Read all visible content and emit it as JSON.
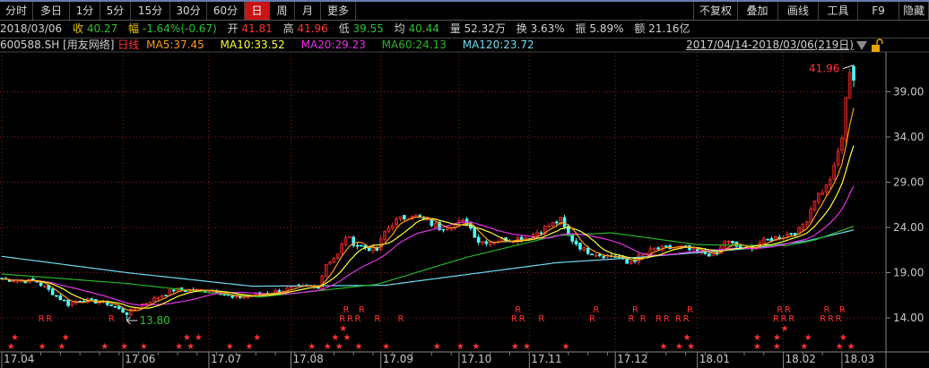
{
  "toolbar": {
    "left_tabs": [
      "分时",
      "多日",
      "1分",
      "5分",
      "15分",
      "30分",
      "60分",
      "日",
      "周",
      "月",
      "更多"
    ],
    "active_tab": "日",
    "right_tabs": [
      "不复权",
      "叠加",
      "画线",
      "工具",
      "F9",
      "隐藏"
    ]
  },
  "quote": {
    "date": "2018/03/06",
    "close_label": "收",
    "close": "40.27",
    "change_label": "幅",
    "change": "-1.64%(-0.67)",
    "open_label": "开",
    "open": "41.81",
    "high_label": "高",
    "high": "41.96",
    "low_label": "低",
    "low": "39.55",
    "avg_label": "均",
    "avg": "40.44",
    "volume_label": "量",
    "volume": "52.32万",
    "turnover_label": "换",
    "turnover": "3.63%",
    "amplitude_label": "振",
    "amplitude": "5.89%",
    "amount_label": "额",
    "amount": "21.16亿"
  },
  "indicator": {
    "symbol": "600588.SH [用友网络]",
    "period": "日线",
    "ma5": "MA5:37.45",
    "ma10": "MA10:33.52",
    "ma20": "MA20:29.23",
    "ma60": "MA60:24.13",
    "ma120": "MA120:23.72",
    "range": "2017/04/14-2018/03/06(219日)"
  },
  "colors": {
    "up": "#ff3232",
    "down": "#54fcfc",
    "ma5": "#ff9a1e",
    "ma10": "#ffff3c",
    "ma20": "#e632e6",
    "ma60": "#28b428",
    "ma120": "#6edcf0",
    "grid": "#8a1e1e",
    "active_tab": "#c81414"
  },
  "icons": {
    "range_menu": "triangle-down-icon",
    "lock": "unlock-icon"
  },
  "chart_data": {
    "type": "candlestick",
    "days": 219,
    "y_ticks": [
      "39.00",
      "34.00",
      "29.00",
      "24.00",
      "19.00",
      "14.00"
    ],
    "y_tick_values": [
      39,
      34,
      29,
      24,
      19,
      14
    ],
    "x_ticks": [
      {
        "label": "17.04",
        "day": 0
      },
      {
        "label": "17.06",
        "day": 31
      },
      {
        "label": "17.07",
        "day": 53
      },
      {
        "label": "17.08",
        "day": 74
      },
      {
        "label": "17.09",
        "day": 97
      },
      {
        "label": "17.10",
        "day": 117
      },
      {
        "label": "17.11",
        "day": 135
      },
      {
        "label": "17.12",
        "day": 157
      },
      {
        "label": "18.01",
        "day": 178
      },
      {
        "label": "18.02",
        "day": 200
      },
      {
        "label": "18.03",
        "day": 215
      }
    ],
    "close_keypoints": [
      [
        0,
        18.3
      ],
      [
        9,
        18.0
      ],
      [
        17,
        15.5
      ],
      [
        20,
        16.0
      ],
      [
        24,
        15.8
      ],
      [
        27,
        15.6
      ],
      [
        32,
        14.5
      ],
      [
        36,
        15.5
      ],
      [
        41,
        16.5
      ],
      [
        44,
        17.1
      ],
      [
        55,
        17.0
      ],
      [
        59,
        16.2
      ],
      [
        64,
        16.5
      ],
      [
        71,
        17.0
      ],
      [
        75,
        17.3
      ],
      [
        81,
        17.5
      ],
      [
        83,
        20
      ],
      [
        86,
        21
      ],
      [
        88,
        23
      ],
      [
        91,
        22
      ],
      [
        96,
        21.5
      ],
      [
        98,
        23.5
      ],
      [
        100,
        24.5
      ],
      [
        105,
        25.5
      ],
      [
        107,
        25
      ],
      [
        112,
        24
      ],
      [
        117,
        24.5
      ],
      [
        119,
        24.6
      ],
      [
        122,
        22.5
      ],
      [
        126,
        22.5
      ],
      [
        130,
        22.7
      ],
      [
        135,
        23
      ],
      [
        139,
        24
      ],
      [
        143,
        24.8
      ],
      [
        145,
        23
      ],
      [
        149,
        21.5
      ],
      [
        153,
        21
      ],
      [
        158,
        20.7
      ],
      [
        160,
        20
      ],
      [
        162,
        20.5
      ],
      [
        167,
        21.6
      ],
      [
        174,
        21.8
      ],
      [
        178,
        21.2
      ],
      [
        183,
        21.0
      ],
      [
        185,
        22.5
      ],
      [
        190,
        21.5
      ],
      [
        194,
        22.3
      ],
      [
        199,
        23
      ],
      [
        204,
        23.6
      ],
      [
        206,
        25
      ],
      [
        208,
        27.2
      ],
      [
        211,
        28.5
      ],
      [
        213,
        30.5
      ],
      [
        215,
        34
      ],
      [
        216,
        38
      ],
      [
        217,
        41.5
      ],
      [
        218,
        40.27
      ]
    ],
    "last_candle": {
      "open": 41.81,
      "high": 41.96,
      "low": 39.55,
      "close": 40.27
    },
    "ma60_keypoints": [
      [
        0,
        18.85
      ],
      [
        32,
        17.8
      ],
      [
        53,
        16.8
      ],
      [
        66,
        16.3
      ],
      [
        96,
        17.7
      ],
      [
        119,
        20.7
      ],
      [
        142,
        23.1
      ],
      [
        156,
        23.4
      ],
      [
        178,
        22.1
      ],
      [
        192,
        22.0
      ],
      [
        201,
        22.0
      ],
      [
        208,
        22.6
      ],
      [
        218,
        24.13
      ]
    ],
    "ma120_keypoints": [
      [
        0,
        20.8
      ],
      [
        32,
        19.0
      ],
      [
        64,
        17.5
      ],
      [
        98,
        17.6
      ],
      [
        142,
        20.1
      ],
      [
        160,
        20.6
      ],
      [
        192,
        21.7
      ],
      [
        206,
        22.5
      ],
      [
        218,
        23.72
      ]
    ],
    "high_mark": {
      "label": "41.96",
      "day": 218
    },
    "low_mark": {
      "label": "13.80",
      "day": 32,
      "value": 13.8
    },
    "star_days": [
      2,
      3,
      10,
      15,
      16,
      26,
      31,
      36,
      45,
      47,
      48,
      50,
      58,
      63,
      65,
      79,
      83,
      85,
      86,
      87,
      88,
      91,
      98,
      111,
      117,
      121,
      131,
      134,
      144,
      169,
      173,
      175,
      176,
      193,
      193,
      198,
      198,
      200,
      205,
      206,
      214,
      215,
      217
    ],
    "r_days": [
      10,
      12,
      28,
      87,
      88,
      89,
      91,
      92,
      96,
      102,
      131,
      132,
      133,
      138,
      151,
      152,
      161,
      162,
      164,
      168,
      170,
      173,
      175,
      176,
      198,
      199,
      200,
      201,
      202,
      210,
      211,
      212,
      214,
      215
    ],
    "star_glyph": "★",
    "r_glyph": "R"
  }
}
